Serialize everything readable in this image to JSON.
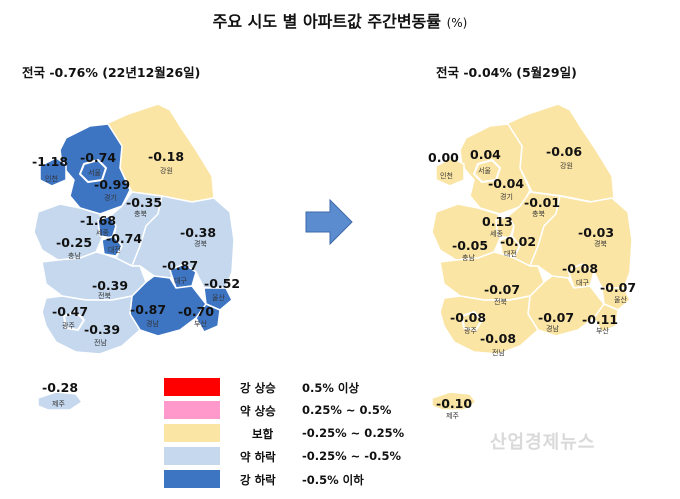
{
  "title": "주요 시도 별 아파트값 주간변동률",
  "title_unit": "(%)",
  "left_map": {
    "subtitle": "전국 -0.76% (22년12월26일)",
    "regions": [
      {
        "name": "인천",
        "value": "-1.18"
      },
      {
        "name": "서울",
        "value": "-0.74"
      },
      {
        "name": "경기",
        "value": "-0.99"
      },
      {
        "name": "강원",
        "value": "-0.18"
      },
      {
        "name": "충북",
        "value": "-0.35"
      },
      {
        "name": "세종",
        "value": "-1.68"
      },
      {
        "name": "대전",
        "value": "-0.74"
      },
      {
        "name": "충남",
        "value": "-0.25"
      },
      {
        "name": "경북",
        "value": "-0.38"
      },
      {
        "name": "대구",
        "value": "-0.87"
      },
      {
        "name": "울산",
        "value": "-0.52"
      },
      {
        "name": "전북",
        "value": "-0.39"
      },
      {
        "name": "경남",
        "value": "-0.87"
      },
      {
        "name": "부산",
        "value": "-0.70"
      },
      {
        "name": "광주",
        "value": "-0.47"
      },
      {
        "name": "전남",
        "value": "-0.39"
      },
      {
        "name": "제주",
        "value": "-0.28"
      }
    ]
  },
  "right_map": {
    "subtitle": "전국 -0.04% (5월29일)",
    "regions": [
      {
        "name": "인천",
        "value": "0.00"
      },
      {
        "name": "서울",
        "value": "0.04"
      },
      {
        "name": "경기",
        "value": "-0.04"
      },
      {
        "name": "강원",
        "value": "-0.06"
      },
      {
        "name": "충북",
        "value": "-0.01"
      },
      {
        "name": "세종",
        "value": "0.13"
      },
      {
        "name": "대전",
        "value": "-0.02"
      },
      {
        "name": "충남",
        "value": "-0.05"
      },
      {
        "name": "경북",
        "value": "-0.03"
      },
      {
        "name": "대구",
        "value": "-0.08"
      },
      {
        "name": "울산",
        "value": "-0.07"
      },
      {
        "name": "전북",
        "value": "-0.07"
      },
      {
        "name": "광주",
        "value": "-0.08"
      },
      {
        "name": "경남",
        "value": "-0.07"
      },
      {
        "name": "부산",
        "value": "-0.11"
      },
      {
        "name": "전남",
        "value": "-0.08"
      },
      {
        "name": "제주",
        "value": "-0.10"
      }
    ]
  },
  "legend": [
    {
      "label": "강 상승",
      "range": "0.5% 이상",
      "color": "#ff0000"
    },
    {
      "label": "약 상승",
      "range": "0.25% ~ 0.5%",
      "color": "#ff99cc"
    },
    {
      "label": "보합",
      "range": "-0.25% ~ 0.25%",
      "color": "#fbe5a5"
    },
    {
      "label": "약 하락",
      "range": "-0.25% ~ -0.5%",
      "color": "#c5d8ee"
    },
    {
      "label": "강 하락",
      "range": "-0.5% 이하",
      "color": "#3e75c3"
    }
  ],
  "watermark": "산업경제뉴스",
  "colors": {
    "strong_fall": "#3e75c3",
    "weak_fall": "#c5d8ee",
    "flat": "#fbe5a5",
    "arrow": "#5b8ccf"
  }
}
